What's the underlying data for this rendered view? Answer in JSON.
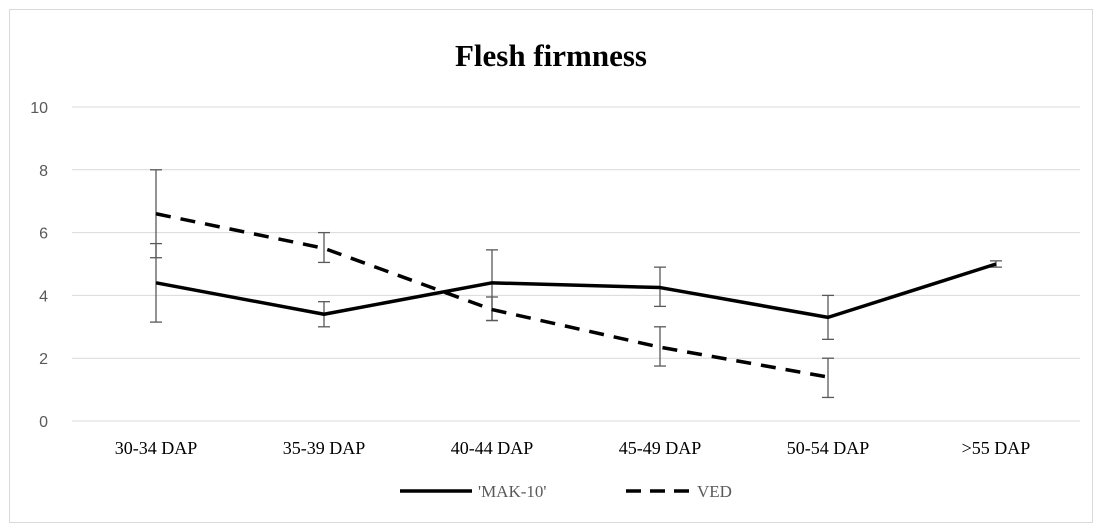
{
  "chart_data": {
    "type": "line",
    "title": "Flesh firmness",
    "xlabel": "",
    "ylabel": "",
    "categories": [
      "30-34 DAP",
      "35-39 DAP",
      "40-44 DAP",
      "45-49 DAP",
      "50-54 DAP",
      ">55 DAP"
    ],
    "ylim": [
      0,
      10
    ],
    "yticks": [
      "0",
      "2",
      "4",
      "6",
      "8",
      "10"
    ],
    "grid": "horizontal",
    "legend_position": "bottom",
    "series": [
      {
        "name": "'MAK-10'",
        "style": "solid",
        "color": "#000000",
        "values": [
          4.4,
          3.4,
          4.4,
          4.25,
          3.3,
          5.0
        ],
        "error_low": [
          3.15,
          3.0,
          3.2,
          3.65,
          2.6,
          4.9
        ],
        "error_high": [
          5.65,
          3.8,
          5.45,
          4.9,
          4.0,
          5.1
        ]
      },
      {
        "name": "VED",
        "style": "dashed",
        "color": "#000000",
        "values": [
          6.6,
          5.5,
          3.55,
          2.35,
          1.4,
          null
        ],
        "error_low": [
          5.2,
          5.05,
          3.2,
          1.75,
          0.75,
          null
        ],
        "error_high": [
          8.0,
          6.0,
          3.95,
          3.0,
          2.0,
          null
        ]
      }
    ]
  },
  "colors": {
    "gridline": "#d9d9d9",
    "axis": "#d9d9d9",
    "errorbar": "#595959",
    "line": "#000000"
  }
}
